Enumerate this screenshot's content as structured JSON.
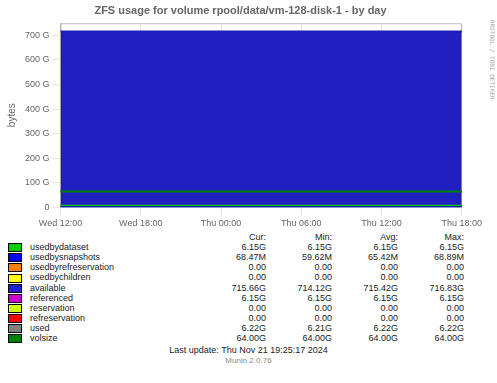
{
  "chart_data": {
    "type": "line",
    "title": "ZFS usage for volume rpool/data/vm-128-disk-1 - by day",
    "y_label": "bytes",
    "categories": [
      "Wed 12:00",
      "Wed 18:00",
      "Thu 00:00",
      "Thu 06:00",
      "Thu 12:00",
      "Thu 18:00"
    ],
    "series": [
      {
        "name": "available",
        "color": "#2020c0",
        "type": "area",
        "values": [
          715.66,
          715.66,
          715.66,
          715.66,
          715.66,
          715.66
        ]
      },
      {
        "name": "volsize",
        "color": "#008000",
        "values": [
          64.0,
          64.0,
          64.0,
          64.0,
          64.0,
          64.0
        ]
      },
      {
        "name": "usedbydataset",
        "color": "#00cc00",
        "values": [
          6.15,
          6.15,
          6.15,
          6.15,
          6.15,
          6.15
        ]
      },
      {
        "name": "usedbysnapshots",
        "color": "#0000ff",
        "values": [
          0.068,
          0.068,
          0.068,
          0.068,
          0.068,
          0.068
        ]
      }
    ],
    "ylim": [
      0,
      750
    ],
    "yticks": [
      0,
      {
        "value": 100,
        "label": "100 G"
      },
      {
        "value": 200,
        "label": "200 G"
      },
      {
        "value": 300,
        "label": "300 G"
      },
      {
        "value": 400,
        "label": "400 G"
      },
      {
        "value": 500,
        "label": "500 G"
      },
      {
        "value": 600,
        "label": "600 G"
      },
      {
        "value": 700,
        "label": "700 G"
      }
    ],
    "grid": true,
    "legend_table": {
      "columns": [
        "Cur:",
        "Min:",
        "Avg:",
        "Max:"
      ],
      "rows": [
        {
          "label": "usedbydataset",
          "color": "#00cc00",
          "cells": [
            "6.15G",
            "6.15G",
            "6.15G",
            "6.15G"
          ]
        },
        {
          "label": "usedbysnapshots",
          "color": "#0000ff",
          "cells": [
            "68.47M",
            "59.62M",
            "65.42M",
            "68.89M"
          ]
        },
        {
          "label": "usedbyrefreservation",
          "color": "#ff7f00",
          "cells": [
            "0.00",
            "0.00",
            "0.00",
            "0.00"
          ]
        },
        {
          "label": "usedbychildren",
          "color": "#ffff00",
          "cells": [
            "0.00",
            "0.00",
            "0.00",
            "0.00"
          ]
        },
        {
          "label": "available",
          "color": "#2020cc",
          "cells": [
            "715.66G",
            "714.12G",
            "715.42G",
            "716.83G"
          ]
        },
        {
          "label": "referenced",
          "color": "#cc00cc",
          "cells": [
            "6.15G",
            "6.15G",
            "6.15G",
            "6.15G"
          ]
        },
        {
          "label": "reservation",
          "color": "#ccff00",
          "cells": [
            "0.00",
            "0.00",
            "0.00",
            "0.00"
          ]
        },
        {
          "label": "refreservation",
          "color": "#ff0000",
          "cells": [
            "0.00",
            "0.00",
            "0.00",
            "0.00"
          ]
        },
        {
          "label": "used",
          "color": "#808080",
          "cells": [
            "6.22G",
            "6.21G",
            "6.22G",
            "6.22G"
          ]
        },
        {
          "label": "volsize",
          "color": "#008000",
          "cells": [
            "64.00G",
            "64.00G",
            "64.00G",
            "64.00G"
          ]
        }
      ]
    },
    "annotations": [
      "RRDTOOL / TOBI OETIKER",
      "Last update: Thu Nov 21 19:25:17 2024",
      "Munin 2.0.76"
    ]
  }
}
